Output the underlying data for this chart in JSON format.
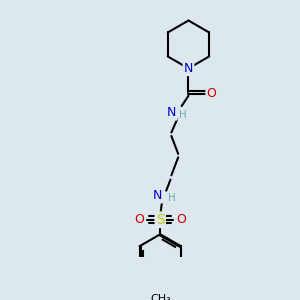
{
  "bg_color": "#dde8ee",
  "atom_colors": {
    "C": "#000000",
    "N": "#0000cc",
    "O": "#cc0000",
    "S": "#cccc00",
    "H": "#6aacac"
  },
  "bond_color": "#000000",
  "font_size_atom": 9,
  "font_size_small": 7
}
